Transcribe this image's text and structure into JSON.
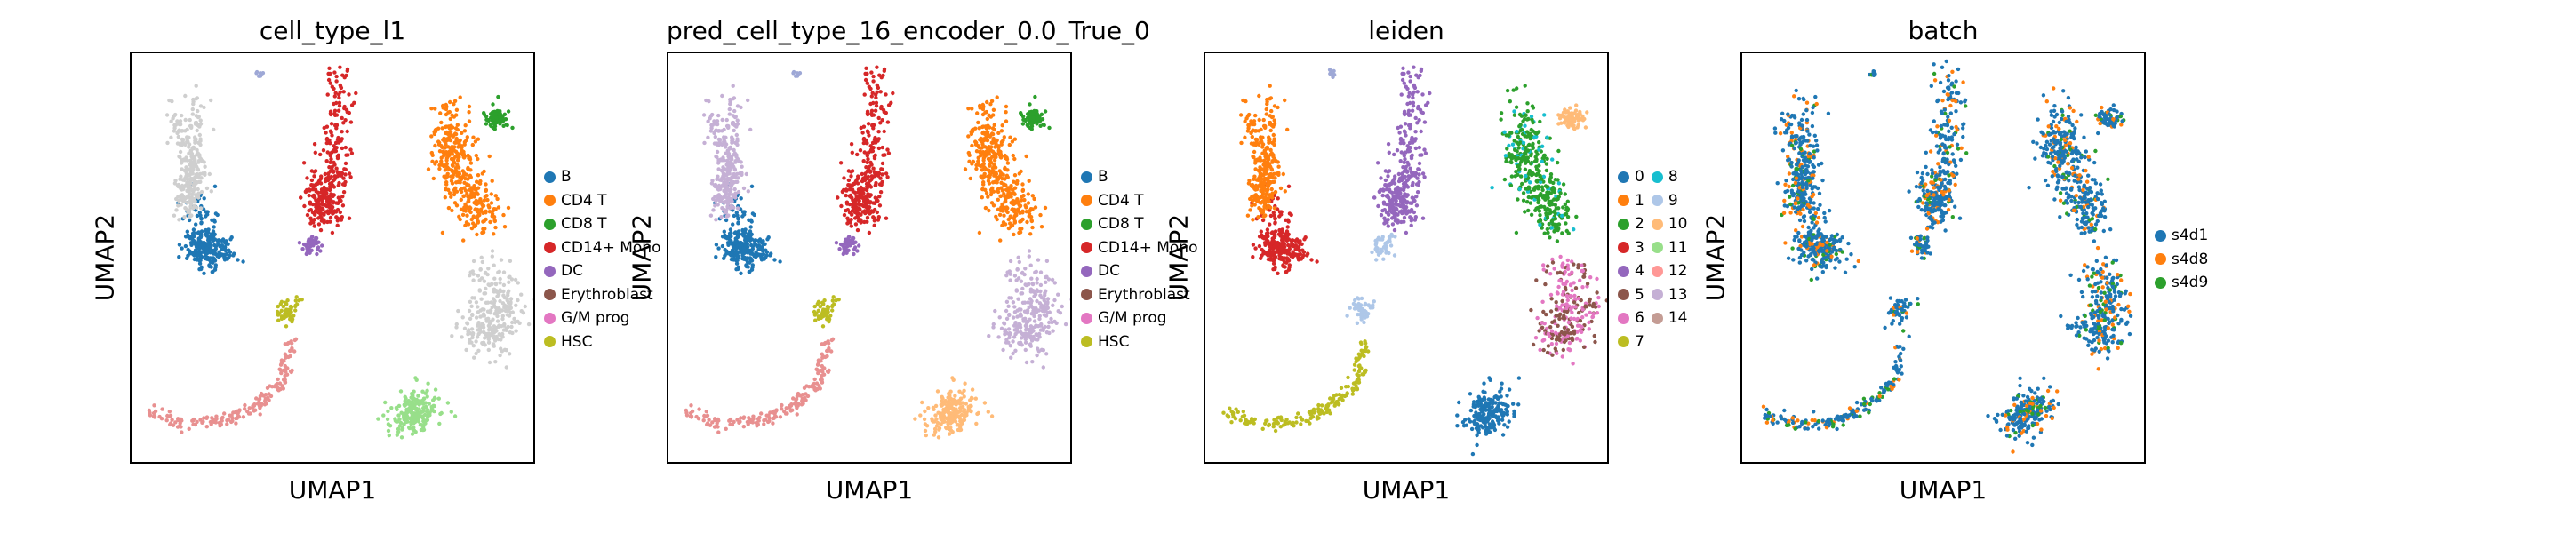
{
  "chart_data": [
    {
      "type": "scatter",
      "title": "cell_type_l1",
      "xlabel": "UMAP1",
      "ylabel": "UMAP2",
      "legend_placement": "right",
      "series": [
        {
          "name": "B",
          "color": "#1f77b4"
        },
        {
          "name": "CD4 T",
          "color": "#ff7f0e"
        },
        {
          "name": "CD8 T",
          "color": "#2ca02c"
        },
        {
          "name": "CD14+ Mono",
          "color": "#d62728"
        },
        {
          "name": "DC",
          "color": "#9467bd"
        },
        {
          "name": "Erythroblast",
          "color": "#8c564b"
        },
        {
          "name": "G/M prog",
          "color": "#e377c2"
        },
        {
          "name": "HSC",
          "color": "#bcbd22"
        }
      ]
    },
    {
      "type": "scatter",
      "title": "pred_cell_type_16_encoder_0.0_True_0",
      "xlabel": "UMAP1",
      "ylabel": "UMAP2",
      "legend_placement": "right",
      "series": [
        {
          "name": "B",
          "color": "#1f77b4"
        },
        {
          "name": "CD4 T",
          "color": "#ff7f0e"
        },
        {
          "name": "CD8 T",
          "color": "#2ca02c"
        },
        {
          "name": "CD14+ Mono",
          "color": "#d62728"
        },
        {
          "name": "DC",
          "color": "#9467bd"
        },
        {
          "name": "Erythroblast",
          "color": "#8c564b"
        },
        {
          "name": "G/M prog",
          "color": "#e377c2"
        },
        {
          "name": "HSC",
          "color": "#bcbd22"
        }
      ]
    },
    {
      "type": "scatter",
      "title": "leiden",
      "xlabel": "UMAP1",
      "ylabel": "UMAP2",
      "legend_placement": "right",
      "series": [
        {
          "name": "0",
          "color": "#1f77b4"
        },
        {
          "name": "1",
          "color": "#ff7f0e"
        },
        {
          "name": "2",
          "color": "#2ca02c"
        },
        {
          "name": "3",
          "color": "#d62728"
        },
        {
          "name": "4",
          "color": "#9467bd"
        },
        {
          "name": "5",
          "color": "#8c564b"
        },
        {
          "name": "6",
          "color": "#e377c2"
        },
        {
          "name": "7",
          "color": "#bcbd22"
        },
        {
          "name": "8",
          "color": "#17becf"
        },
        {
          "name": "9",
          "color": "#aec7e8"
        },
        {
          "name": "10",
          "color": "#ffbb78"
        },
        {
          "name": "11",
          "color": "#98df8a"
        },
        {
          "name": "12",
          "color": "#ff9896"
        },
        {
          "name": "13",
          "color": "#c5b0d5"
        },
        {
          "name": "14",
          "color": "#c49c94"
        }
      ]
    },
    {
      "type": "scatter",
      "title": "batch",
      "xlabel": "UMAP1",
      "ylabel": "UMAP2",
      "legend_placement": "right",
      "series": [
        {
          "name": "s4d1",
          "color": "#1f77b4"
        },
        {
          "name": "s4d8",
          "color": "#ff7f0e"
        },
        {
          "name": "s4d9",
          "color": "#2ca02c"
        }
      ]
    }
  ]
}
